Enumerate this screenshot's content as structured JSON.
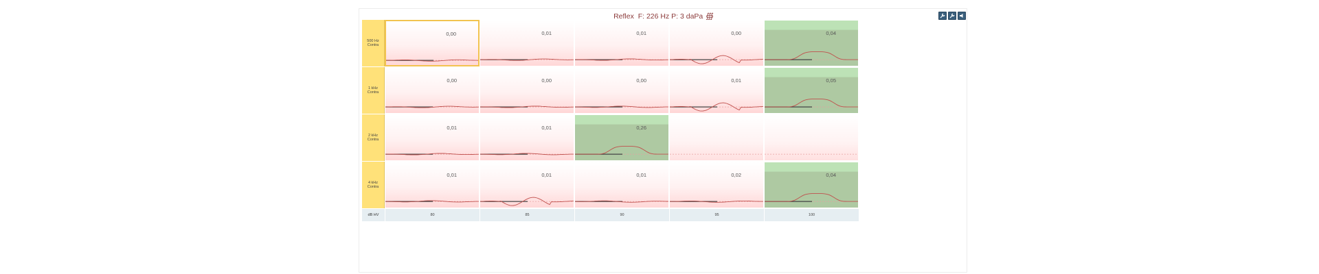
{
  "title": {
    "prefix": "Reflex",
    "text": "F: 226 Hz P: 3 daPa"
  },
  "toolbar": {
    "buttons": [
      "wrench-icon",
      "wrench-icon",
      "speaker-icon"
    ]
  },
  "colors": {
    "title": "#8b3a3a",
    "label_bg": "#ffe179",
    "pass_bg": "#bde2b6",
    "fail_bg": "#ffd7d7",
    "curve": "#c0504d"
  },
  "rows": [
    {
      "label": "500 Hz\nContra",
      "values": [
        "0,00",
        "0,01",
        "0,01",
        "0,00",
        "0,04"
      ],
      "pass": [
        false,
        false,
        false,
        false,
        true
      ]
    },
    {
      "label": "1 kHz\nContra",
      "values": [
        "0,00",
        "0,00",
        "0,00",
        "0,01",
        "0,05"
      ],
      "pass": [
        false,
        false,
        false,
        false,
        true
      ]
    },
    {
      "label": "2 kHz\nContra",
      "values": [
        "0,01",
        "0,01",
        "0,26",
        "",
        ""
      ],
      "pass": [
        false,
        false,
        true,
        null,
        null
      ]
    },
    {
      "label": "4 kHz\nContra",
      "values": [
        "0,01",
        "0,01",
        "0,01",
        "0,02",
        "0,04"
      ],
      "pass": [
        false,
        false,
        false,
        false,
        true
      ]
    }
  ],
  "footer": {
    "label": "dB HV",
    "levels": [
      "80",
      "85",
      "90",
      "95",
      "100"
    ]
  }
}
